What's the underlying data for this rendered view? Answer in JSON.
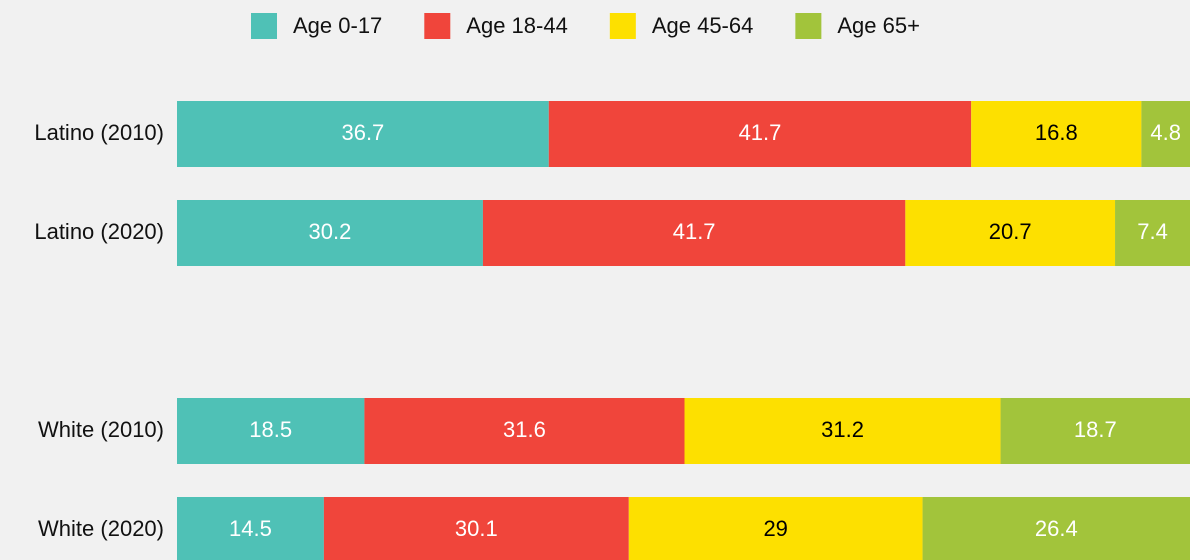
{
  "chart_data": {
    "type": "stacked-bar-horizontal",
    "categories": [
      "Latino (2010)",
      "Latino (2020)",
      null,
      "White (2010)",
      "White (2020)"
    ],
    "series": [
      {
        "name": "Age 0-17",
        "color": "#4fc1b6",
        "label_color": "#ffffff",
        "values": [
          36.7,
          30.2,
          null,
          18.5,
          14.5
        ]
      },
      {
        "name": "Age 18-44",
        "color": "#f0453b",
        "label_color": "#ffffff",
        "values": [
          41.7,
          41.7,
          null,
          31.6,
          30.1
        ]
      },
      {
        "name": "Age 45-64",
        "color": "#fde000",
        "label_color": "#000000",
        "values": [
          16.8,
          20.7,
          null,
          31.2,
          29
        ]
      },
      {
        "name": "Age 65+",
        "color": "#a2c43b",
        "label_color": "#ffffff",
        "values": [
          4.8,
          7.4,
          null,
          18.7,
          26.4
        ]
      }
    ],
    "xlim": [
      0,
      100
    ],
    "legend": "top"
  }
}
